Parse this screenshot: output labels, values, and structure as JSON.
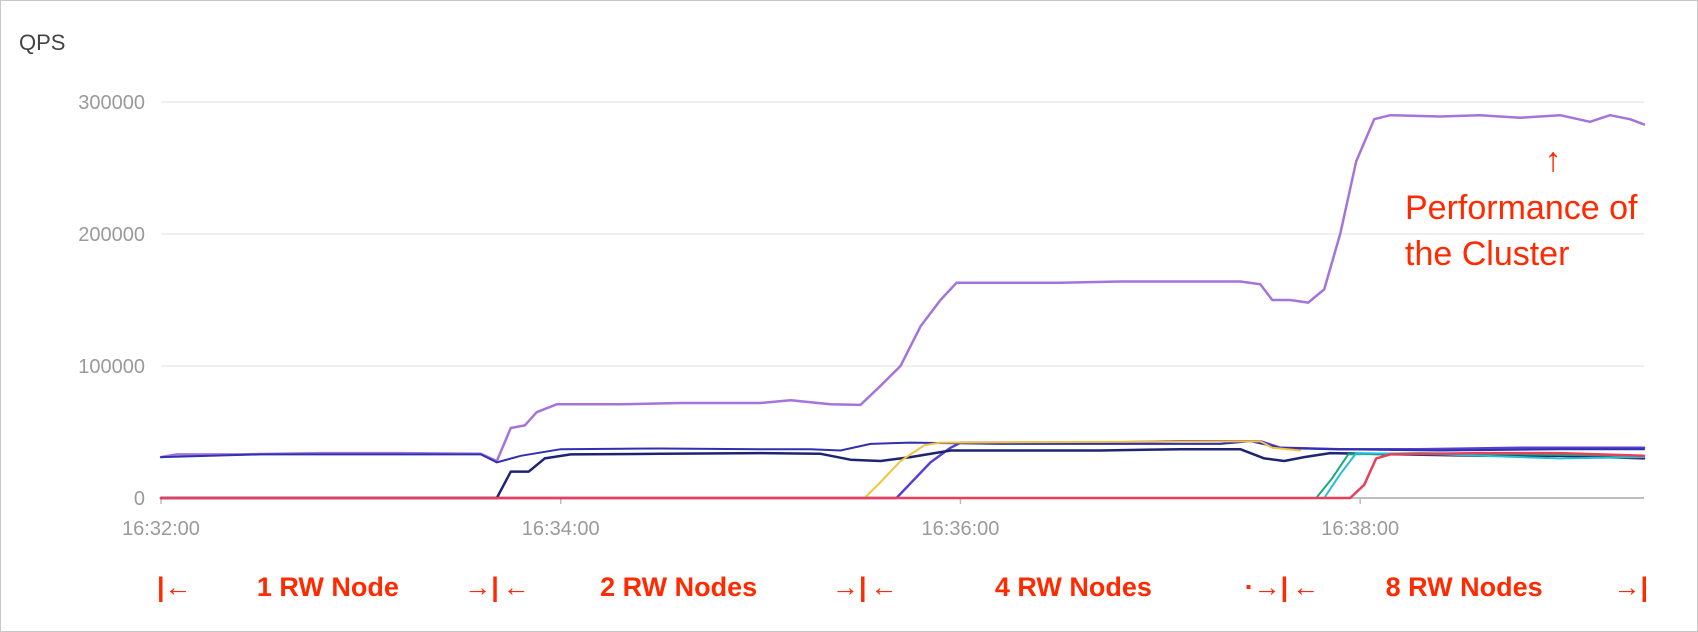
{
  "chart_data": {
    "type": "line",
    "ylabel": "QPS",
    "ylim": [
      0,
      300000
    ],
    "yticks": [
      {
        "value": 0,
        "label": "0"
      },
      {
        "value": 100000,
        "label": "100000"
      },
      {
        "value": 200000,
        "label": "200000"
      },
      {
        "value": 300000,
        "label": "300000"
      }
    ],
    "xticks": [
      {
        "value": 0,
        "label": "16:32:00"
      },
      {
        "value": 2,
        "label": "16:34:00"
      },
      {
        "value": 4,
        "label": "16:36:00"
      },
      {
        "value": 6,
        "label": "16:38:00"
      }
    ],
    "xlim": [
      0,
      7.42
    ],
    "grid": true,
    "annotation": {
      "arrow": "↑",
      "line1": "Performance of",
      "line2": "the Cluster"
    },
    "segments": [
      {
        "label": "1 RW Node",
        "left": "|←",
        "right": "→|",
        "x_start": 0,
        "x_end": 1.67
      },
      {
        "label": "2 RW Nodes",
        "left": "←",
        "right": "→|",
        "x_start": 1.67,
        "x_end": 3.51
      },
      {
        "label": "4 RW Nodes",
        "left": "←",
        "right": "·→|",
        "x_start": 3.51,
        "x_end": 5.62
      },
      {
        "label": "8 RW Nodes",
        "left": "←",
        "right": "→|",
        "x_start": 5.62,
        "x_end": 7.42
      }
    ],
    "series": [
      {
        "color": "#a474dc",
        "width": 2.5,
        "points": [
          [
            0,
            31000
          ],
          [
            0.08,
            33000
          ],
          [
            0.4,
            33000
          ],
          [
            0.8,
            34000
          ],
          [
            1.2,
            34000
          ],
          [
            1.6,
            33500
          ],
          [
            1.68,
            28000
          ],
          [
            1.75,
            53000
          ],
          [
            1.82,
            55000
          ],
          [
            1.88,
            65000
          ],
          [
            1.98,
            71000
          ],
          [
            2.3,
            71000
          ],
          [
            2.6,
            72000
          ],
          [
            3.0,
            72000
          ],
          [
            3.15,
            74000
          ],
          [
            3.35,
            71000
          ],
          [
            3.5,
            70500
          ],
          [
            3.6,
            85000
          ],
          [
            3.7,
            100000
          ],
          [
            3.8,
            130000
          ],
          [
            3.9,
            150000
          ],
          [
            3.98,
            163000
          ],
          [
            4.2,
            163000
          ],
          [
            4.5,
            163000
          ],
          [
            4.8,
            164000
          ],
          [
            5.1,
            164000
          ],
          [
            5.4,
            164000
          ],
          [
            5.5,
            162000
          ],
          [
            5.56,
            150000
          ],
          [
            5.65,
            150000
          ],
          [
            5.74,
            148000
          ],
          [
            5.82,
            158000
          ],
          [
            5.9,
            200000
          ],
          [
            5.98,
            255000
          ],
          [
            6.07,
            287000
          ],
          [
            6.15,
            290000
          ],
          [
            6.4,
            289000
          ],
          [
            6.6,
            290000
          ],
          [
            6.8,
            288000
          ],
          [
            7.0,
            290000
          ],
          [
            7.15,
            285000
          ],
          [
            7.25,
            290000
          ],
          [
            7.35,
            287000
          ],
          [
            7.42,
            283000
          ]
        ]
      },
      {
        "color": "#5b3fd4",
        "width": 2.5,
        "points": [
          [
            0,
            0
          ],
          [
            3.68,
            0
          ],
          [
            3.85,
            27000
          ],
          [
            3.95,
            38000
          ],
          [
            4.0,
            42000
          ],
          [
            4.3,
            42000
          ],
          [
            4.7,
            42000
          ],
          [
            5.1,
            43000
          ],
          [
            5.5,
            43000
          ],
          [
            5.6,
            38000
          ],
          [
            5.9,
            37000
          ],
          [
            6.3,
            37000
          ],
          [
            6.8,
            38000
          ],
          [
            7.42,
            38000
          ]
        ]
      },
      {
        "color": "#1d2470",
        "width": 2.5,
        "points": [
          [
            0,
            0
          ],
          [
            1.68,
            0
          ],
          [
            1.75,
            20000
          ],
          [
            1.84,
            20000
          ],
          [
            1.92,
            30000
          ],
          [
            2.05,
            33000
          ],
          [
            2.5,
            33500
          ],
          [
            3.0,
            34000
          ],
          [
            3.3,
            33500
          ],
          [
            3.45,
            29000
          ],
          [
            3.6,
            28000
          ],
          [
            3.75,
            31000
          ],
          [
            3.95,
            36000
          ],
          [
            4.3,
            36000
          ],
          [
            4.7,
            36000
          ],
          [
            5.1,
            37000
          ],
          [
            5.4,
            37000
          ],
          [
            5.52,
            30000
          ],
          [
            5.62,
            28000
          ],
          [
            5.72,
            31000
          ],
          [
            5.85,
            34000
          ],
          [
            6.2,
            33000
          ],
          [
            6.6,
            32000
          ],
          [
            7.0,
            32000
          ],
          [
            7.42,
            30000
          ]
        ]
      },
      {
        "color": "#3030b0",
        "width": 2,
        "points": [
          [
            0,
            31000
          ],
          [
            0.5,
            33000
          ],
          [
            1.2,
            33000
          ],
          [
            1.6,
            33000
          ],
          [
            1.68,
            27000
          ],
          [
            1.8,
            32000
          ],
          [
            2.0,
            37000
          ],
          [
            2.5,
            37500
          ],
          [
            3.0,
            37000
          ],
          [
            3.25,
            37000
          ],
          [
            3.4,
            36000
          ],
          [
            3.55,
            41000
          ],
          [
            3.75,
            42000
          ],
          [
            4.2,
            41000
          ],
          [
            4.8,
            41000
          ],
          [
            5.3,
            41000
          ],
          [
            5.45,
            43000
          ],
          [
            5.6,
            38000
          ],
          [
            5.9,
            37000
          ],
          [
            6.4,
            36000
          ],
          [
            7.0,
            37000
          ],
          [
            7.42,
            37000
          ]
        ]
      },
      {
        "color": "#f0c43a",
        "width": 2,
        "points": [
          [
            0,
            0
          ],
          [
            3.52,
            0
          ],
          [
            3.6,
            12000
          ],
          [
            3.7,
            28000
          ],
          [
            3.82,
            40000
          ],
          [
            3.9,
            42000
          ],
          [
            5.5,
            43000
          ],
          [
            5.56,
            38000
          ],
          [
            5.7,
            36000
          ]
        ]
      },
      {
        "color": "#19a97b",
        "width": 2,
        "points": [
          [
            0,
            0
          ],
          [
            5.78,
            0
          ],
          [
            5.86,
            15000
          ],
          [
            5.94,
            33000
          ],
          [
            6.3,
            34000
          ],
          [
            6.8,
            33000
          ],
          [
            7.42,
            32000
          ]
        ]
      },
      {
        "color": "#22bfd6",
        "width": 2,
        "points": [
          [
            0,
            0
          ],
          [
            5.82,
            0
          ],
          [
            5.9,
            18000
          ],
          [
            5.98,
            34000
          ],
          [
            6.4,
            33000
          ],
          [
            7.0,
            30000
          ],
          [
            7.42,
            31000
          ]
        ]
      },
      {
        "color": "#e94058",
        "width": 2.5,
        "points": [
          [
            0,
            0
          ],
          [
            5.95,
            0
          ],
          [
            6.02,
            10000
          ],
          [
            6.08,
            30000
          ],
          [
            6.15,
            33000
          ],
          [
            6.6,
            34000
          ],
          [
            7.0,
            34000
          ],
          [
            7.42,
            32000
          ]
        ]
      }
    ]
  }
}
